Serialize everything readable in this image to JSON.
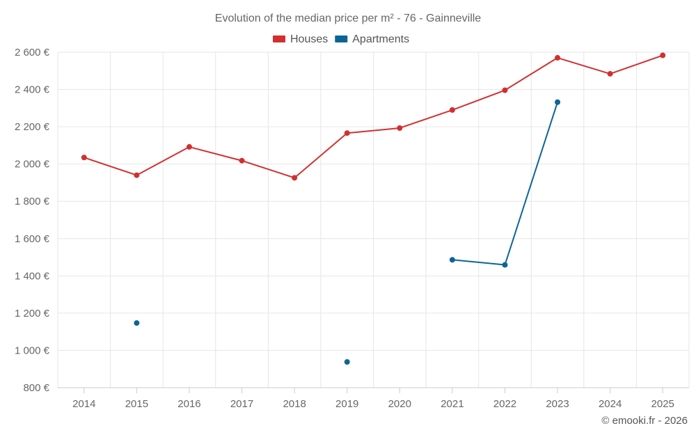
{
  "chart_data": {
    "type": "line",
    "title": "Evolution of the median price per m² - 76 - Gainneville",
    "categories": [
      "2014",
      "2015",
      "2016",
      "2017",
      "2018",
      "2019",
      "2020",
      "2021",
      "2022",
      "2023",
      "2024",
      "2025"
    ],
    "ylim": [
      800,
      2600
    ],
    "yticks": [
      800,
      1000,
      1200,
      1400,
      1600,
      1800,
      2000,
      2200,
      2400,
      2600
    ],
    "ytick_labels": [
      "800 €",
      "1 000 €",
      "1 200 €",
      "1 400 €",
      "1 600 €",
      "1 800 €",
      "2 000 €",
      "2 200 €",
      "2 400 €",
      "2 600 €"
    ],
    "grid": true,
    "legend_position": "top-center",
    "series": [
      {
        "name": "Houses",
        "color": "#d32f2f",
        "values": [
          2035,
          1940,
          2092,
          2018,
          1926,
          2166,
          2193,
          2290,
          2396,
          2570,
          2484,
          2583
        ]
      },
      {
        "name": "Apartments",
        "color": "#0d6496",
        "values": [
          null,
          1147,
          null,
          null,
          null,
          938,
          null,
          1486,
          1459,
          2332,
          null,
          null
        ]
      }
    ]
  },
  "credit": "© emooki.fr - 2026"
}
